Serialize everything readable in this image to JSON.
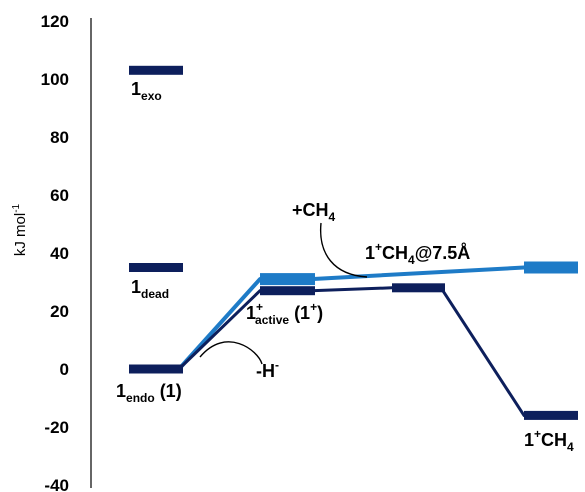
{
  "chart_data": {
    "type": "energy_diagram",
    "ylabel": "kJ mol-1",
    "ylabel_text": "kJ mol",
    "ylabel_sup": "-1",
    "ylim": [
      -40,
      120
    ],
    "yticks": [
      -40,
      -20,
      0,
      20,
      40,
      60,
      80,
      100,
      120
    ],
    "colors": {
      "dark": "#0d1f5c",
      "light": "#1e7bc7"
    },
    "levels": [
      {
        "id": "endo",
        "column": 1,
        "value": 0,
        "color": "dark"
      },
      {
        "id": "dead",
        "column": 1,
        "value": 35,
        "color": "dark"
      },
      {
        "id": "exo",
        "column": 1,
        "value": 103,
        "color": "dark"
      },
      {
        "id": "active_light",
        "column": 2,
        "value": 31,
        "color": "light"
      },
      {
        "id": "active_dark",
        "column": 2,
        "value": 27,
        "color": "dark"
      },
      {
        "id": "complex_dark",
        "column": 3,
        "value": 28,
        "color": "dark"
      },
      {
        "id": "ch4_light",
        "column": 4,
        "value": 35,
        "color": "light"
      },
      {
        "id": "final",
        "column": 4,
        "value": -16,
        "color": "dark"
      }
    ],
    "connectors": [
      {
        "from": [
          "endo",
          "right"
        ],
        "to": [
          "active_light",
          "left"
        ],
        "color": "light"
      },
      {
        "from": [
          "endo",
          "right"
        ],
        "to": [
          "active_dark",
          "left"
        ],
        "color": "dark"
      },
      {
        "from": [
          "active_light",
          "right"
        ],
        "to": [
          "ch4_light",
          "left"
        ],
        "color": "light"
      },
      {
        "from": [
          "active_dark",
          "right"
        ],
        "to": [
          "complex_dark",
          "left"
        ],
        "color": "dark"
      },
      {
        "from": [
          "complex_dark",
          "right"
        ],
        "to": [
          "final",
          "left"
        ],
        "color": "dark"
      }
    ],
    "labels": {
      "exo": {
        "main": "1",
        "sub": "exo"
      },
      "dead": {
        "main": "1",
        "sub": "dead"
      },
      "endo": {
        "main": "1",
        "sub": "endo",
        "tail": " (1)"
      },
      "active": {
        "main": "1",
        "sup": "+",
        "sub": "active",
        "tail": " (1",
        "tail_sup": "+",
        "tail_end": ")"
      },
      "hydride": {
        "main": "-H",
        "sup": "-"
      },
      "methane_add": {
        "main": "+CH",
        "sub": "4"
      },
      "complex": {
        "main": "1",
        "sup": "+",
        "mid": "CH",
        "sub": "4",
        "tail": "@7.5Å"
      },
      "product": {
        "main": "1",
        "sup": "+",
        "mid": "CH",
        "sub": "4"
      }
    }
  }
}
